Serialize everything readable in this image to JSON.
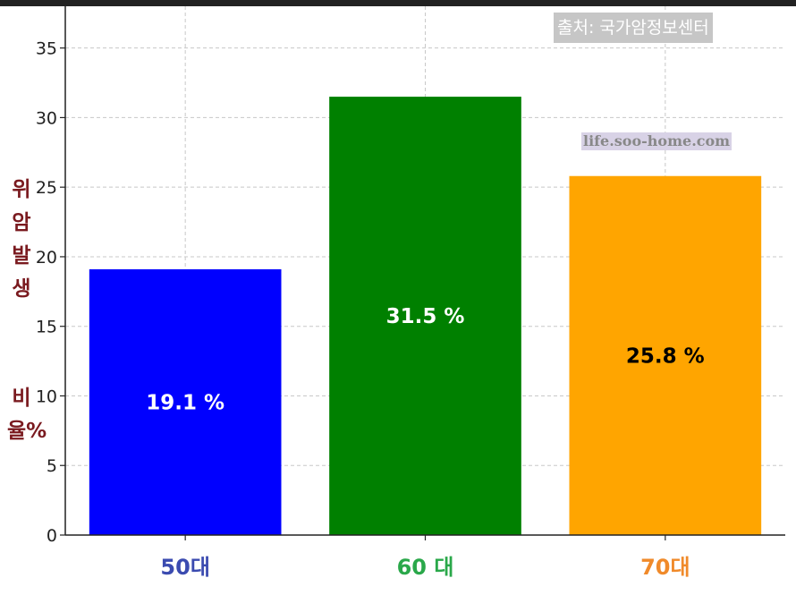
{
  "chart_data": {
    "type": "bar",
    "categories": [
      "50대",
      "60 대",
      "70대"
    ],
    "values": [
      19.1,
      31.5,
      25.8
    ],
    "value_labels": [
      "19.1 %",
      "31.5 %",
      "25.8 %"
    ],
    "bar_colors": [
      "#0000ff",
      "#008000",
      "#ffa500"
    ],
    "data_label_colors": [
      "#ffffff",
      "#ffffff",
      "#000000"
    ],
    "category_label_colors": [
      "#3b4bb0",
      "#2aa84a",
      "#f08a2a"
    ],
    "ylabel_top": "위암발생",
    "ylabel_bottom": "비율%",
    "ylabel_color": "#7a1a1f",
    "yticks": [
      0,
      5,
      10,
      15,
      20,
      25,
      30,
      35
    ],
    "ylim": [
      0,
      38
    ],
    "grid": true
  },
  "annotations": {
    "source": "출처: 국가암정보센터",
    "watermark": "life.soo-home.com"
  }
}
